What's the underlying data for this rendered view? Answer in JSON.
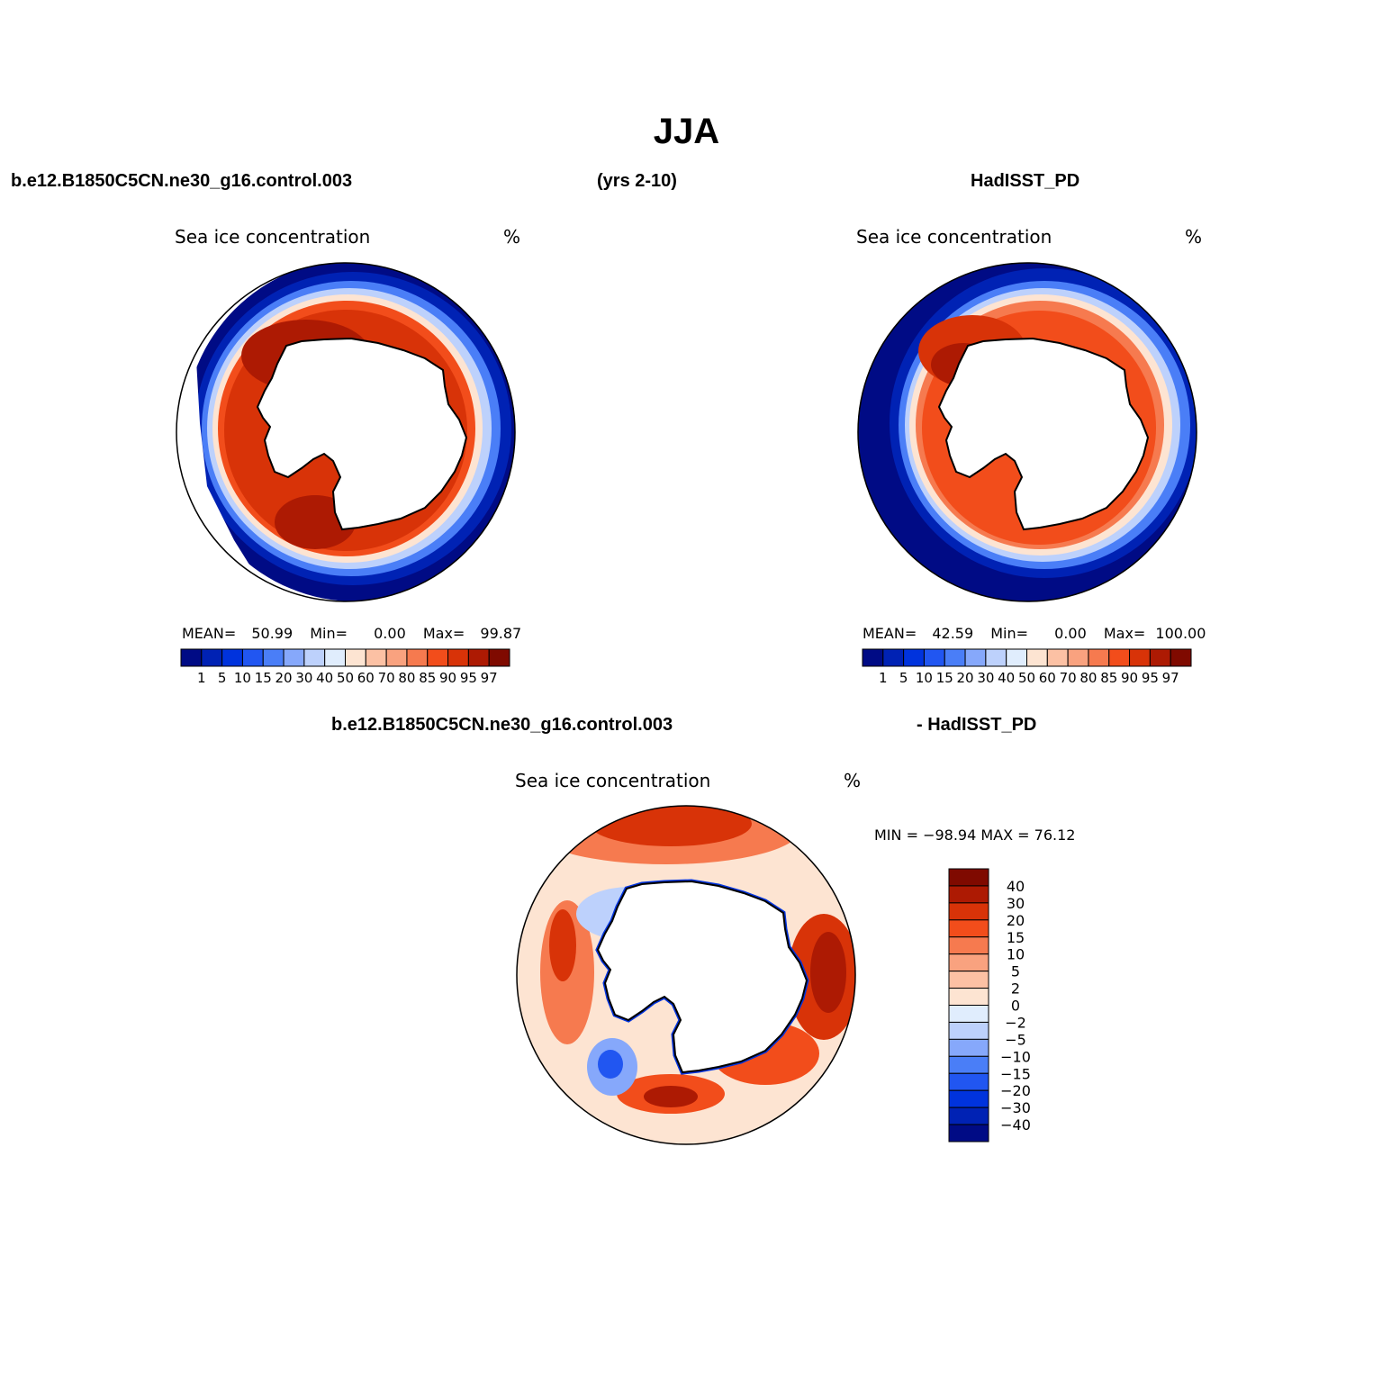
{
  "figure": {
    "title": "JJA",
    "header_left": "b.e12.B1850C5CN.ne30_g16.control.003",
    "header_center": "(yrs 2-10)",
    "header_right": "HadISST_PD",
    "diff_header_left": "b.e12.B1850C5CN.ne30_g16.control.003",
    "diff_header_right": "- HadISST_PD"
  },
  "colors": {
    "abs_scale": [
      "#000b85",
      "#0022b4",
      "#0033dd",
      "#2156f1",
      "#4a7ef7",
      "#86a8fb",
      "#bdd1fc",
      "#e0edfd",
      "#fde4d2",
      "#fcc1a4",
      "#f9a27f",
      "#f67a4f",
      "#f24d1b",
      "#d83308",
      "#ad1a03",
      "#7f0a00"
    ],
    "diff_scale": [
      "#000b85",
      "#0022b4",
      "#0033dd",
      "#2156f1",
      "#4a7ef7",
      "#86a8fb",
      "#bdd1fc",
      "#e0edfd",
      "#fde4d2",
      "#fcc1a4",
      "#f9a27f",
      "#f67a4f",
      "#f24d1b",
      "#d83308",
      "#ad1a03",
      "#7f0a00"
    ]
  },
  "panels": {
    "model": {
      "variable": "Sea ice concentration",
      "units": "%",
      "mean_label": "MEAN=",
      "mean": "50.99",
      "min_label": "Min=",
      "min": "0.00",
      "max_label": "Max=",
      "max": "99.87"
    },
    "obs": {
      "variable": "Sea ice concentration",
      "units": "%",
      "mean_label": "MEAN=",
      "mean": "42.59",
      "min_label": "Min=",
      "min": "0.00",
      "max_label": "Max=",
      "max": "100.00"
    },
    "diff": {
      "variable": "Sea ice concentration",
      "units": "%",
      "minmax_text": "MIN = −98.94 MAX =   76.12"
    }
  },
  "colorbars": {
    "abs_labels": [
      "1",
      "5",
      "10",
      "15",
      "20",
      "30",
      "40",
      "50",
      "60",
      "70",
      "80",
      "85",
      "90",
      "95",
      "97"
    ],
    "diff_labels": [
      "40",
      "30",
      "20",
      "15",
      "10",
      "5",
      "2",
      "0",
      "−2",
      "−5",
      "−10",
      "−15",
      "−20",
      "−30",
      "−40"
    ]
  }
}
